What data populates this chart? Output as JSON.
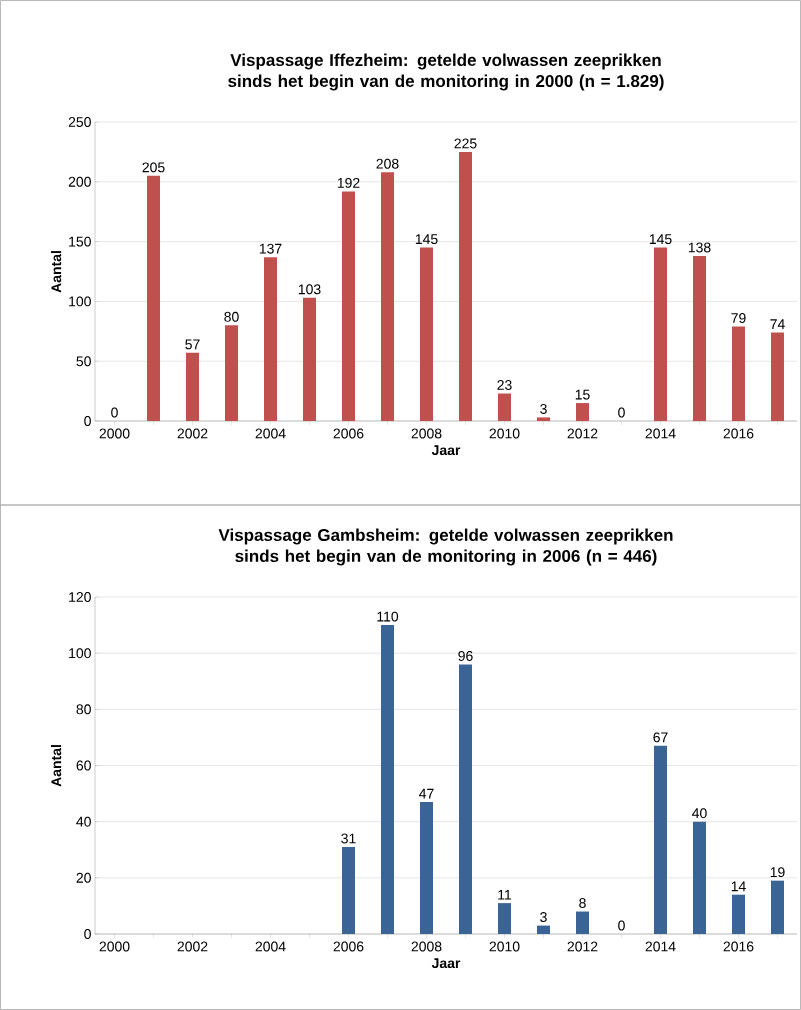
{
  "chart_data": [
    {
      "type": "bar",
      "title": "Vispassage Iffezheim: getelde volwassen zeeprikken sinds het begin van de monitoring in 2000 (n = 1.829)",
      "xlabel": "Jaar",
      "ylabel": "Aantal",
      "categories": [
        "2000",
        null,
        "2002",
        null,
        "2004",
        null,
        "2006",
        null,
        "2008",
        null,
        "2010",
        null,
        "2012",
        null,
        "2014",
        null,
        "2016",
        null
      ],
      "values": [
        0,
        205,
        57,
        80,
        137,
        103,
        192,
        208,
        145,
        225,
        23,
        3,
        15,
        0,
        145,
        138,
        79,
        74
      ],
      "color": "#c0504d",
      "ylim": [
        0,
        250
      ],
      "yticks": [
        0,
        50,
        100,
        150,
        200,
        250
      ],
      "grid": "y",
      "data_labels": true
    },
    {
      "type": "bar",
      "title": "Vispassage Gambsheim: getelde volwassen zeeprikken sinds het begin van de monitoring in 2006 (n = 446)",
      "xlabel": "Jaar",
      "ylabel": "Aantal",
      "categories": [
        "2000",
        null,
        "2002",
        null,
        "2004",
        null,
        "2006",
        null,
        "2008",
        null,
        "2010",
        null,
        "2012",
        null,
        "2014",
        null,
        "2016",
        null
      ],
      "values": [
        null,
        null,
        null,
        null,
        null,
        null,
        31,
        110,
        47,
        96,
        11,
        3,
        8,
        0,
        67,
        40,
        14,
        19
      ],
      "color": "#3a6496",
      "ylim": [
        0,
        120
      ],
      "yticks": [
        0,
        20,
        40,
        60,
        80,
        100,
        120
      ],
      "grid": "y",
      "data_labels": true
    }
  ]
}
